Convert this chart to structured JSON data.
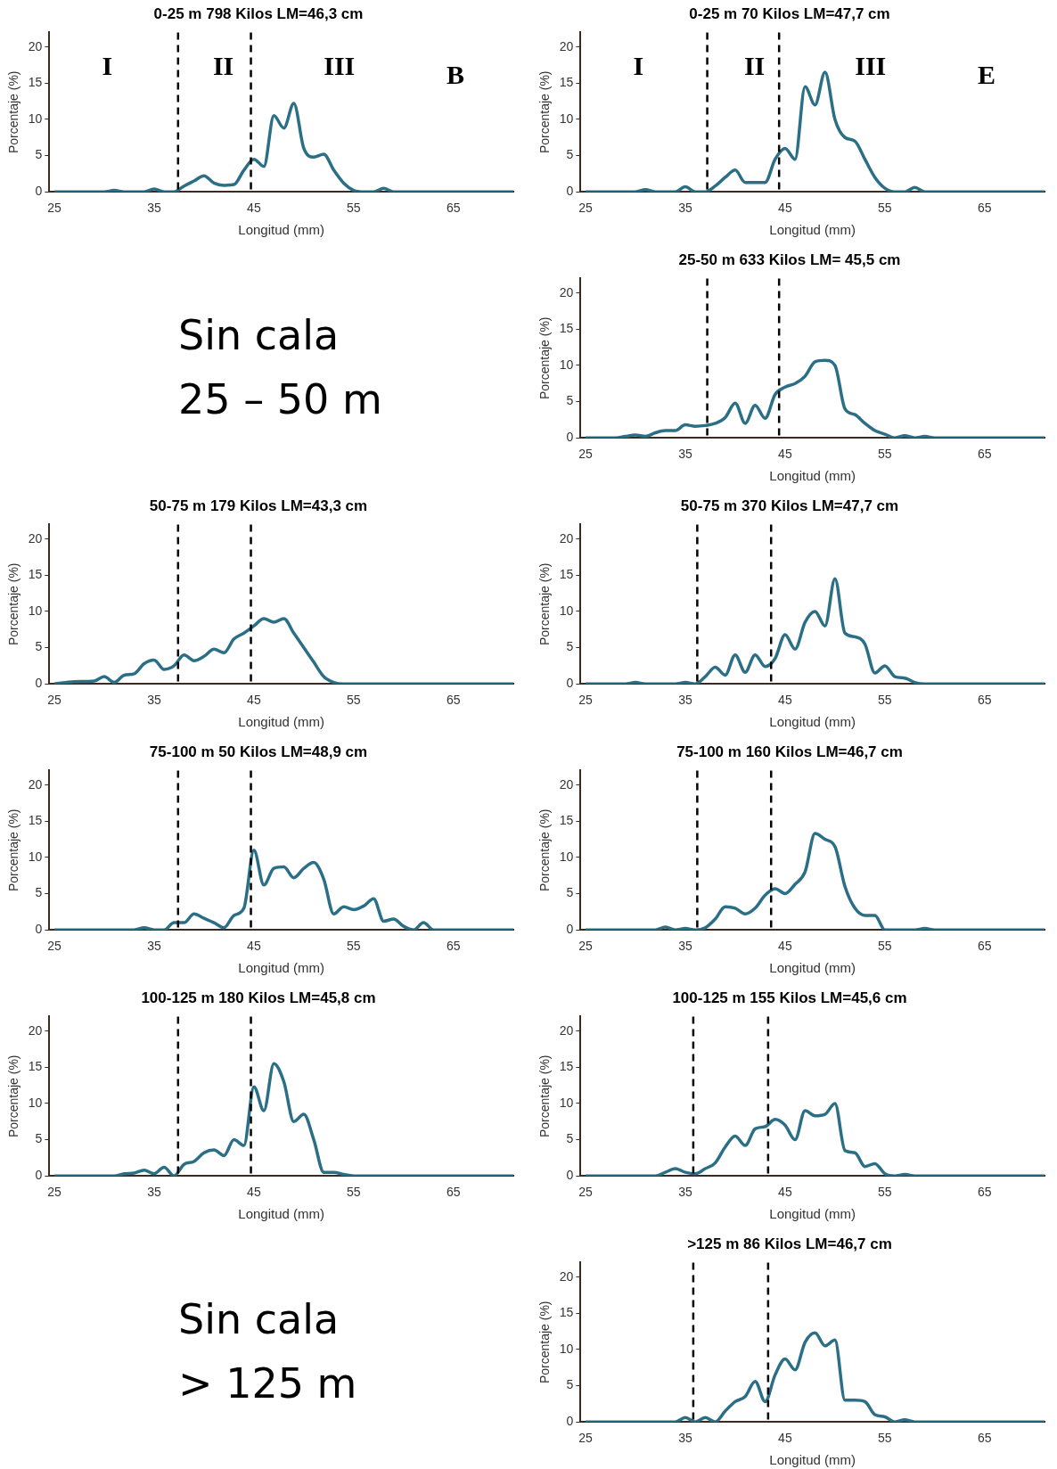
{
  "chart_data": [
    {
      "type": "line",
      "title": "0-25 m 798 Kilos LM=46,3 cm",
      "xlabel": "Longitud (mm)",
      "ylabel": "Porcentaje (%)",
      "xlim": [
        24.5,
        71
      ],
      "ylim": [
        0,
        22
      ],
      "xticks": [
        25,
        35,
        45,
        55,
        65
      ],
      "yticks": [
        0,
        5,
        10,
        15,
        20
      ],
      "grid": false,
      "legend": false,
      "marker": "none",
      "series": [
        {
          "color": "#2a6f86",
          "x": [
            25,
            30,
            31,
            32,
            34,
            35,
            36,
            37,
            38,
            39,
            40,
            41,
            42,
            43,
            44,
            45,
            46,
            47,
            48,
            49,
            50,
            51,
            52,
            53,
            54,
            55,
            56,
            57,
            58,
            59,
            71
          ],
          "values": [
            0,
            0,
            0.2,
            0,
            0,
            0.4,
            0,
            0,
            0.8,
            1.5,
            2.2,
            1.2,
            0.9,
            1,
            3,
            4.5,
            3.5,
            10.5,
            8.8,
            12.2,
            6,
            4.8,
            5.2,
            3,
            1.2,
            0.2,
            0,
            0,
            0.5,
            0,
            0
          ]
        }
      ],
      "ref_lines": [
        {
          "axis": "x",
          "value": 37.4,
          "color": "#000000",
          "line_style": "dashed"
        },
        {
          "axis": "x",
          "value": 44.7,
          "color": "#000000",
          "line_style": "dashed"
        }
      ],
      "annotations": [
        "I",
        "II",
        "III",
        "B"
      ]
    },
    {
      "type": "line",
      "title": "0-25 m 70 Kilos LM=47,7 cm",
      "xlabel": "Longitud (mm)",
      "ylabel": "Porcentaje (%)",
      "xlim": [
        24.5,
        71
      ],
      "ylim": [
        0,
        22
      ],
      "xticks": [
        25,
        35,
        45,
        55,
        65
      ],
      "yticks": [
        0,
        5,
        10,
        15,
        20
      ],
      "grid": false,
      "legend": false,
      "marker": "none",
      "series": [
        {
          "color": "#2a6f86",
          "x": [
            25,
            30,
            31,
            32,
            34,
            35,
            36,
            37,
            38,
            39,
            40,
            41,
            42,
            43,
            44,
            45,
            46,
            47,
            48,
            49,
            50,
            51,
            52,
            53,
            54,
            55,
            56,
            57,
            58,
            59,
            71
          ],
          "values": [
            0,
            0,
            0.3,
            0,
            0,
            0.7,
            0,
            0,
            0.8,
            2,
            3,
            1.3,
            1.3,
            1.3,
            4.5,
            6,
            4.5,
            14.5,
            12,
            16.5,
            10,
            7.5,
            7,
            4.5,
            2,
            0.5,
            0,
            0,
            0.6,
            0,
            0
          ]
        }
      ],
      "ref_lines": [
        {
          "axis": "x",
          "value": 37.2,
          "color": "#000000",
          "line_style": "dashed"
        },
        {
          "axis": "x",
          "value": 44.4,
          "color": "#000000",
          "line_style": "dashed"
        }
      ],
      "annotations": [
        "I",
        "II",
        "III",
        "E"
      ]
    },
    {
      "type": "other",
      "annotations": [
        "Sin cala",
        "25 – 50 m"
      ]
    },
    {
      "type": "line",
      "title": "25-50 m 633 Kilos LM= 45,5 cm",
      "xlabel": "Longitud (mm)",
      "ylabel": "Porcentaje (%)",
      "xlim": [
        24.5,
        71
      ],
      "ylim": [
        0,
        22
      ],
      "xticks": [
        25,
        35,
        45,
        55,
        65
      ],
      "yticks": [
        0,
        5,
        10,
        15,
        20
      ],
      "grid": false,
      "legend": false,
      "marker": "none",
      "series": [
        {
          "color": "#2a6f86",
          "x": [
            25,
            28,
            29,
            30,
            31,
            32,
            33,
            34,
            35,
            36,
            37,
            38,
            39,
            40,
            41,
            42,
            43,
            44,
            45,
            46,
            47,
            48,
            49,
            50,
            51,
            52,
            53,
            54,
            55,
            56,
            57,
            58,
            59,
            60,
            71
          ],
          "values": [
            0,
            0,
            0.2,
            0.4,
            0.2,
            0.7,
            1,
            1,
            1.8,
            1.6,
            1.7,
            2,
            2.8,
            4.8,
            2,
            4.5,
            2.7,
            6,
            7,
            7.5,
            8.5,
            10.5,
            10.7,
            10,
            4,
            3.2,
            2,
            1,
            0.5,
            0,
            0.3,
            0,
            0.2,
            0,
            0
          ]
        }
      ],
      "ref_lines": [
        {
          "axis": "x",
          "value": 37.2,
          "color": "#000000",
          "line_style": "dashed"
        },
        {
          "axis": "x",
          "value": 44.4,
          "color": "#000000",
          "line_style": "dashed"
        }
      ]
    },
    {
      "type": "line",
      "title": "50-75 m 179 Kilos LM=43,3 cm",
      "xlabel": "Longitud (mm)",
      "ylabel": "Porcentaje (%)",
      "xlim": [
        24.5,
        71
      ],
      "ylim": [
        0,
        22
      ],
      "xticks": [
        25,
        35,
        45,
        55,
        65
      ],
      "yticks": [
        0,
        5,
        10,
        15,
        20
      ],
      "grid": false,
      "legend": false,
      "marker": "none",
      "series": [
        {
          "color": "#2a6f86",
          "x": [
            25,
            27,
            29,
            30,
            31,
            32,
            33,
            34,
            35,
            36,
            37,
            38,
            39,
            40,
            41,
            42,
            43,
            44,
            45,
            46,
            47,
            48,
            49,
            50,
            51,
            52,
            53,
            54,
            71
          ],
          "values": [
            0,
            0.3,
            0.4,
            1,
            0.2,
            1.2,
            1.4,
            2.8,
            3.3,
            2,
            2.5,
            4,
            3.2,
            3.8,
            4.8,
            4.3,
            6.2,
            7,
            8,
            9,
            8.5,
            9,
            7,
            5,
            3,
            1,
            0.2,
            0,
            0
          ]
        }
      ],
      "ref_lines": [
        {
          "axis": "x",
          "value": 37.4,
          "color": "#000000",
          "line_style": "dashed"
        },
        {
          "axis": "x",
          "value": 44.7,
          "color": "#000000",
          "line_style": "dashed"
        }
      ]
    },
    {
      "type": "line",
      "title": "50-75 m 370 Kilos LM=47,7 cm",
      "xlabel": "Longitud (mm)",
      "ylabel": "Porcentaje (%)",
      "xlim": [
        24.5,
        71
      ],
      "ylim": [
        0,
        22
      ],
      "xticks": [
        25,
        35,
        45,
        55,
        65
      ],
      "yticks": [
        0,
        5,
        10,
        15,
        20
      ],
      "grid": false,
      "legend": false,
      "marker": "none",
      "series": [
        {
          "color": "#2a6f86",
          "x": [
            25,
            29,
            30,
            31,
            34,
            35,
            36,
            37,
            38,
            39,
            40,
            41,
            42,
            43,
            44,
            45,
            46,
            47,
            48,
            49,
            50,
            51,
            52,
            53,
            54,
            55,
            56,
            57,
            58,
            59,
            71
          ],
          "values": [
            0,
            0,
            0.2,
            0,
            0,
            0.2,
            0,
            1,
            2.3,
            1.2,
            4,
            1.6,
            4,
            2.4,
            3.5,
            6.8,
            4.8,
            8.5,
            10,
            8,
            14.5,
            7,
            6.5,
            5.5,
            1.5,
            2.5,
            1,
            0.8,
            0.2,
            0,
            0
          ]
        }
      ],
      "ref_lines": [
        {
          "axis": "x",
          "value": 36.2,
          "color": "#000000",
          "line_style": "dashed"
        },
        {
          "axis": "x",
          "value": 43.6,
          "color": "#000000",
          "line_style": "dashed"
        }
      ]
    },
    {
      "type": "line",
      "title": "75-100 m 50 Kilos LM=48,9 cm",
      "xlabel": "Longitud (mm)",
      "ylabel": "Porcentaje (%)",
      "xlim": [
        24.5,
        71
      ],
      "ylim": [
        0,
        22
      ],
      "xticks": [
        25,
        35,
        45,
        55,
        65
      ],
      "yticks": [
        0,
        5,
        10,
        15,
        20
      ],
      "grid": false,
      "legend": false,
      "marker": "none",
      "series": [
        {
          "color": "#2a6f86",
          "x": [
            25,
            33,
            34,
            35,
            36,
            37,
            38,
            39,
            40,
            41,
            42,
            43,
            44,
            45,
            46,
            47,
            48,
            49,
            50,
            51,
            52,
            53,
            54,
            55,
            56,
            57,
            58,
            59,
            60,
            61,
            62,
            63,
            71
          ],
          "values": [
            0,
            0,
            0.3,
            0,
            0,
            1,
            1,
            2.2,
            1.6,
            1,
            0.3,
            2,
            3,
            11,
            6.2,
            8.5,
            8.7,
            7.2,
            8.5,
            9.3,
            7,
            2.2,
            3.2,
            2.8,
            3.3,
            4.3,
            1.2,
            1.5,
            0.5,
            0,
            1,
            0,
            0
          ]
        }
      ],
      "ref_lines": [
        {
          "axis": "x",
          "value": 37.4,
          "color": "#000000",
          "line_style": "dashed"
        },
        {
          "axis": "x",
          "value": 44.7,
          "color": "#000000",
          "line_style": "dashed"
        }
      ]
    },
    {
      "type": "line",
      "title": "75-100 m 160 Kilos LM=46,7 cm",
      "xlabel": "Longitud (mm)",
      "ylabel": "Porcentaje (%)",
      "xlim": [
        24.5,
        71
      ],
      "ylim": [
        0,
        22
      ],
      "xticks": [
        25,
        35,
        45,
        55,
        65
      ],
      "yticks": [
        0,
        5,
        10,
        15,
        20
      ],
      "grid": false,
      "legend": false,
      "marker": "none",
      "series": [
        {
          "color": "#2a6f86",
          "x": [
            25,
            32,
            33,
            34,
            35,
            36,
            37,
            38,
            39,
            40,
            41,
            42,
            43,
            44,
            45,
            46,
            47,
            48,
            49,
            50,
            51,
            52,
            53,
            54,
            55,
            58,
            59,
            60,
            71
          ],
          "values": [
            0,
            0,
            0.4,
            0,
            0.2,
            0,
            0.3,
            1.5,
            3.2,
            3,
            2.2,
            3,
            4.8,
            5.7,
            5,
            6.3,
            8,
            13.3,
            12.5,
            11.5,
            6,
            3,
            2,
            2,
            0,
            0,
            0.2,
            0,
            0
          ]
        }
      ],
      "ref_lines": [
        {
          "axis": "x",
          "value": 36.2,
          "color": "#000000",
          "line_style": "dashed"
        },
        {
          "axis": "x",
          "value": 43.6,
          "color": "#000000",
          "line_style": "dashed"
        }
      ]
    },
    {
      "type": "line",
      "title": "100-125 m 180 Kilos LM=45,8 cm",
      "xlabel": "Longitud (mm)",
      "ylabel": "Porcentaje (%)",
      "xlim": [
        24.5,
        71
      ],
      "ylim": [
        0,
        22
      ],
      "xticks": [
        25,
        35,
        45,
        55,
        65
      ],
      "yticks": [
        0,
        5,
        10,
        15,
        20
      ],
      "grid": false,
      "legend": false,
      "marker": "none",
      "series": [
        {
          "color": "#2a6f86",
          "x": [
            25,
            31,
            32,
            33,
            34,
            35,
            36,
            37,
            38,
            39,
            40,
            41,
            42,
            43,
            44,
            45,
            46,
            47,
            48,
            49,
            50,
            51,
            52,
            53,
            54,
            55,
            71
          ],
          "values": [
            0,
            0,
            0.3,
            0.4,
            0.8,
            0.3,
            1.2,
            0,
            1.6,
            2,
            3.2,
            3.6,
            2.8,
            5,
            4.2,
            12.3,
            9,
            15.5,
            13,
            7.5,
            8.5,
            5,
            0.5,
            0.5,
            0.2,
            0,
            0
          ]
        }
      ],
      "ref_lines": [
        {
          "axis": "x",
          "value": 37.4,
          "color": "#000000",
          "line_style": "dashed"
        },
        {
          "axis": "x",
          "value": 44.7,
          "color": "#000000",
          "line_style": "dashed"
        }
      ]
    },
    {
      "type": "line",
      "title": "100-125 m 155 Kilos LM=45,6 cm",
      "xlabel": "Longitud (mm)",
      "ylabel": "Porcentaje (%)",
      "xlim": [
        24.5,
        71
      ],
      "ylim": [
        0,
        22
      ],
      "xticks": [
        25,
        35,
        45,
        55,
        65
      ],
      "yticks": [
        0,
        5,
        10,
        15,
        20
      ],
      "grid": false,
      "legend": false,
      "marker": "none",
      "series": [
        {
          "color": "#2a6f86",
          "x": [
            25,
            32,
            33,
            34,
            35,
            36,
            37,
            38,
            39,
            40,
            41,
            42,
            43,
            44,
            45,
            46,
            47,
            48,
            49,
            50,
            51,
            52,
            53,
            54,
            55,
            56,
            57,
            58,
            71
          ],
          "values": [
            0,
            0,
            0.5,
            1,
            0.5,
            0.3,
            1,
            1.8,
            4,
            5.5,
            4.2,
            6.5,
            6.8,
            7.8,
            7,
            5,
            9,
            8.3,
            8.5,
            10,
            3.5,
            3.2,
            1.3,
            1.7,
            0.3,
            0,
            0.2,
            0,
            0
          ]
        }
      ],
      "ref_lines": [
        {
          "axis": "x",
          "value": 35.8,
          "color": "#000000",
          "line_style": "dashed"
        },
        {
          "axis": "x",
          "value": 43.3,
          "color": "#000000",
          "line_style": "dashed"
        }
      ]
    },
    {
      "type": "other",
      "annotations": [
        "Sin cala",
        "> 125 m"
      ]
    },
    {
      "type": "line",
      "title": ">125 m 86 Kilos LM=46,7 cm",
      "xlabel": "Longitud (mm)",
      "ylabel": "Porcentaje (%)",
      "xlim": [
        24.5,
        71
      ],
      "ylim": [
        0,
        22
      ],
      "xticks": [
        25,
        35,
        45,
        55,
        65
      ],
      "yticks": [
        0,
        5,
        10,
        15,
        20
      ],
      "grid": false,
      "legend": false,
      "marker": "none",
      "series": [
        {
          "color": "#2a6f86",
          "x": [
            25,
            34,
            35,
            36,
            37,
            38,
            39,
            40,
            41,
            42,
            43,
            44,
            45,
            46,
            47,
            48,
            49,
            50,
            51,
            52,
            53,
            54,
            55,
            56,
            57,
            58,
            71
          ],
          "values": [
            0,
            0,
            0.6,
            0,
            0.6,
            0,
            1.5,
            2.8,
            3.5,
            5.6,
            2.8,
            6.5,
            8.7,
            7.2,
            11,
            12.3,
            10.5,
            11.3,
            3,
            3,
            2.8,
            1,
            0.7,
            0,
            0.3,
            0,
            0
          ]
        }
      ],
      "ref_lines": [
        {
          "axis": "x",
          "value": 35.8,
          "color": "#000000",
          "line_style": "dashed"
        },
        {
          "axis": "x",
          "value": 43.3,
          "color": "#000000",
          "line_style": "dashed"
        }
      ]
    }
  ]
}
